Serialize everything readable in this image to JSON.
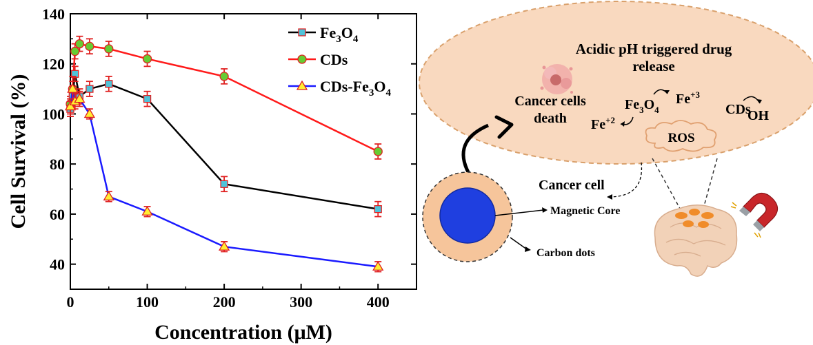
{
  "chart_data": {
    "type": "line",
    "xlabel": "Concentration (μM)",
    "ylabel": "Cell Survival (%)",
    "xlim": [
      0,
      450
    ],
    "ylim": [
      30,
      140
    ],
    "x_ticks": [
      0,
      100,
      200,
      300,
      400
    ],
    "y_ticks": [
      40,
      60,
      80,
      100,
      120,
      140
    ],
    "grid": false,
    "legend": "top-right",
    "series": [
      {
        "name": "Fe3O4",
        "name_base": "Fe",
        "name_sub1": "3",
        "name_mid": "O",
        "name_sub2": "4",
        "color": "#000000",
        "marker": "square",
        "marker_color": "#4fc3d9",
        "x": [
          0,
          3,
          6,
          12,
          25,
          50,
          100,
          200,
          400
        ],
        "y": [
          102,
          107,
          116,
          107,
          110,
          112,
          106,
          72,
          62
        ],
        "err": [
          3,
          4,
          3,
          3,
          3,
          3,
          3,
          3,
          3
        ]
      },
      {
        "name": "CDs",
        "name_base": "CDs",
        "color": "#ff1a1a",
        "marker": "circle",
        "marker_color": "#66cc33",
        "x": [
          0,
          3,
          6,
          12,
          25,
          50,
          100,
          200,
          400
        ],
        "y": [
          104,
          110,
          125,
          128,
          127,
          126,
          122,
          115,
          85
        ],
        "err": [
          3,
          3,
          3,
          3,
          3,
          3,
          3,
          3,
          3
        ]
      },
      {
        "name": "CDs-Fe3O4",
        "name_base": "CDs-Fe",
        "name_sub1": "3",
        "name_mid": "O",
        "name_sub2": "4",
        "color": "#1a1aff",
        "marker": "triangle",
        "marker_color": "#ffee33",
        "x": [
          0,
          3,
          6,
          12,
          25,
          50,
          100,
          200,
          400
        ],
        "y": [
          103,
          110,
          105,
          106,
          100,
          67,
          61,
          47,
          39
        ],
        "err": [
          3,
          5,
          3,
          3,
          2,
          2,
          2,
          2,
          2
        ]
      }
    ]
  },
  "diagram": {
    "bubble_title_line1": "Acidic pH triggered drug",
    "bubble_title_line2": "release",
    "cancer_death_line1": "Cancer cells",
    "cancer_death_line2": "death",
    "fe_base": "Fe",
    "fe_sub1": "3",
    "fe_mid": "O",
    "fe_sub2": "4",
    "fe3_base": "Fe",
    "fe3_sup": "+3",
    "fe2_base": "Fe",
    "fe2_sup": "+2",
    "cds_label": "CDs",
    "oh_label": "OH",
    "ros_label": "ROS",
    "cancer_cell_label": "Cancer cell",
    "magnetic_core_label": "Magnetic Core",
    "carbon_dots_label": "Carbon dots",
    "colors": {
      "bubble_fill": "#f9d9bf",
      "bubble_stroke": "#d9a06b",
      "cell_fill": "#f6c59b",
      "core_fill": "#1f3fe0",
      "magnet_red": "#c8262a",
      "brain": "#f2d2b8",
      "spots": "#f08c2a"
    }
  }
}
